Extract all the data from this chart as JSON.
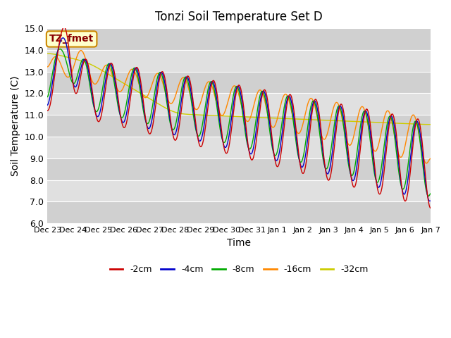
{
  "title": "Tonzi Soil Temperature Set D",
  "xlabel": "Time",
  "ylabel": "Soil Temperature (C)",
  "ylim": [
    6.0,
    15.0
  ],
  "yticks": [
    6.0,
    7.0,
    8.0,
    9.0,
    10.0,
    11.0,
    12.0,
    13.0,
    14.0,
    15.0
  ],
  "xtick_labels": [
    "Dec 23",
    "Dec 24",
    "Dec 25",
    "Dec 26",
    "Dec 27",
    "Dec 28",
    "Dec 29",
    "Dec 30",
    "Dec 31",
    "Jan 1",
    "Jan 2",
    "Jan 3",
    "Jan 4",
    "Jan 5",
    "Jan 6",
    "Jan 7"
  ],
  "legend_entries": [
    "-2cm",
    "-4cm",
    "-8cm",
    "-16cm",
    "-32cm"
  ],
  "line_colors": [
    "#cc0000",
    "#0000cc",
    "#00aa00",
    "#ff8800",
    "#cccc00"
  ],
  "annotation_text": "TZ_fmet",
  "annotation_bg": "#ffffcc",
  "annotation_border": "#cc8800",
  "annotation_text_color": "#880000",
  "bg_light": "#d8d8d8",
  "bg_dark": "#c8c8c8",
  "n_points": 1000
}
